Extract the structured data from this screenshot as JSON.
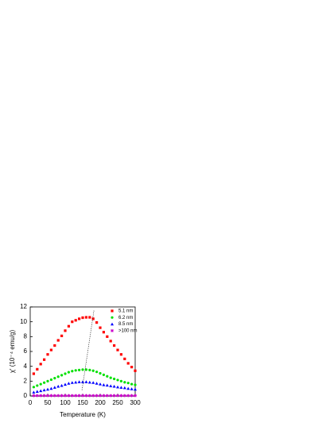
{
  "chart_data": {
    "type": "scatter",
    "xlabel": "Temperature (K)",
    "ylabel": "χ' (10⁻⁴ emu/g)",
    "xlim": [
      0,
      300
    ],
    "xticks": [
      0,
      50,
      100,
      150,
      200,
      250,
      300
    ],
    "ylim": [
      0,
      12
    ],
    "yticks": [
      0,
      2,
      4,
      6,
      8,
      10,
      12
    ],
    "legend": "top-right",
    "x": [
      10,
      20,
      30,
      40,
      50,
      60,
      70,
      80,
      90,
      100,
      110,
      120,
      130,
      140,
      150,
      160,
      170,
      180,
      190,
      200,
      210,
      220,
      230,
      240,
      250,
      260,
      270,
      280,
      290,
      300
    ],
    "series": [
      {
        "name": "5.1 nm",
        "color": "#ff0000",
        "marker": "square",
        "values": [
          3.0,
          3.6,
          4.3,
          4.9,
          5.6,
          6.2,
          6.8,
          7.5,
          8.1,
          8.8,
          9.4,
          10.0,
          10.2,
          10.4,
          10.55,
          10.6,
          10.6,
          10.4,
          9.9,
          9.2,
          8.6,
          8.0,
          7.4,
          6.8,
          6.2,
          5.6,
          5.0,
          4.4,
          3.9,
          3.4
        ]
      },
      {
        "name": "6.2 nm",
        "color": "#00e000",
        "marker": "circle",
        "values": [
          1.2,
          1.4,
          1.6,
          1.8,
          2.0,
          2.2,
          2.4,
          2.6,
          2.8,
          3.0,
          3.2,
          3.35,
          3.45,
          3.5,
          3.55,
          3.55,
          3.5,
          3.4,
          3.25,
          3.05,
          2.85,
          2.65,
          2.45,
          2.3,
          2.15,
          2.0,
          1.85,
          1.75,
          1.6,
          1.5
        ]
      },
      {
        "name": "8.5 nm",
        "color": "#0000ff",
        "marker": "triangle",
        "values": [
          0.5,
          0.6,
          0.7,
          0.8,
          0.9,
          1.0,
          1.15,
          1.3,
          1.4,
          1.55,
          1.7,
          1.8,
          1.85,
          1.9,
          1.9,
          1.9,
          1.85,
          1.8,
          1.7,
          1.6,
          1.5,
          1.45,
          1.35,
          1.3,
          1.2,
          1.15,
          1.1,
          1.0,
          0.95,
          0.9
        ]
      },
      {
        "name": ">100 nm",
        "color": "#cc00cc",
        "marker": "star",
        "values": [
          0.05,
          0.05,
          0.05,
          0.05,
          0.05,
          0.05,
          0.05,
          0.05,
          0.05,
          0.05,
          0.05,
          0.05,
          0.05,
          0.05,
          0.05,
          0.05,
          0.05,
          0.05,
          0.05,
          0.05,
          0.05,
          0.05,
          0.05,
          0.05,
          0.05,
          0.05,
          0.05,
          0.05,
          0.05,
          0.05
        ]
      }
    ],
    "guide": {
      "x": [
        148,
        182
      ],
      "y": [
        0.8,
        11.5
      ]
    }
  }
}
